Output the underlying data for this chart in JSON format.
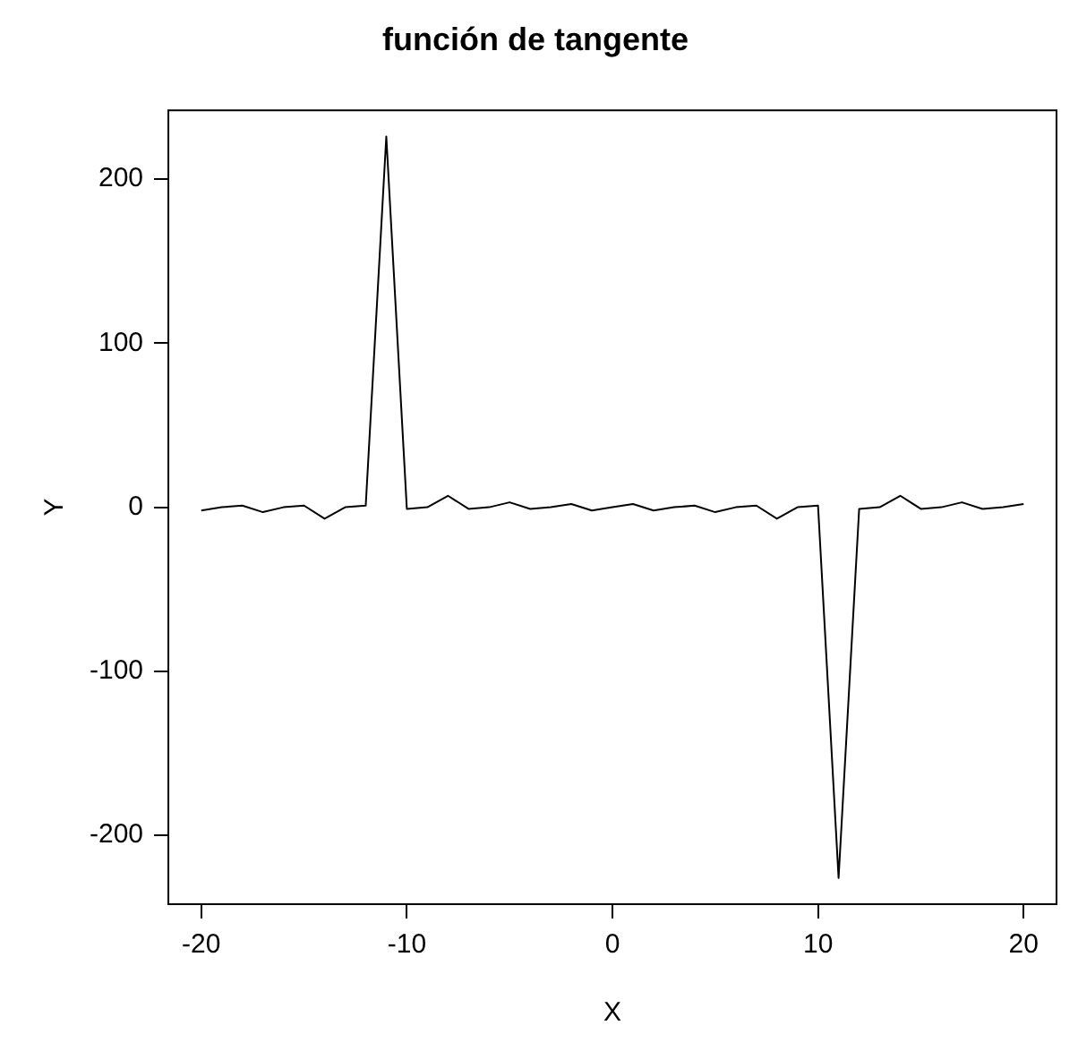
{
  "chart_data": {
    "type": "line",
    "title": "función de tangente",
    "xlabel": "X",
    "ylabel": "Y",
    "x": [
      -20,
      -19,
      -18,
      -17,
      -16,
      -15,
      -14,
      -13,
      -12,
      -11,
      -10,
      -9,
      -8,
      -7,
      -6,
      -5,
      -4,
      -3,
      -2,
      -1,
      0,
      1,
      2,
      3,
      4,
      5,
      6,
      7,
      8,
      9,
      10,
      11,
      12,
      13,
      14,
      15,
      16,
      17,
      18,
      19,
      20
    ],
    "series": [
      {
        "color": "#000000",
        "values": [
          -2,
          0,
          1,
          -3,
          0,
          1,
          -7,
          0,
          1,
          226,
          -1,
          0,
          7,
          -1,
          0,
          3,
          -1,
          0,
          2,
          -2,
          0,
          2,
          -2,
          0,
          1,
          -3,
          0,
          1,
          -7,
          0,
          1,
          -226,
          -1,
          0,
          7,
          -1,
          0,
          3,
          -1,
          0,
          2
        ]
      }
    ],
    "xlim": [
      -21.6,
      21.6
    ],
    "ylim": [
      -242,
      242
    ],
    "xticks": [
      -20,
      -10,
      0,
      10,
      20
    ],
    "yticks": [
      -200,
      -100,
      0,
      100,
      200
    ],
    "grid": false,
    "legend": false,
    "marker": "none",
    "line_style": "solid"
  }
}
